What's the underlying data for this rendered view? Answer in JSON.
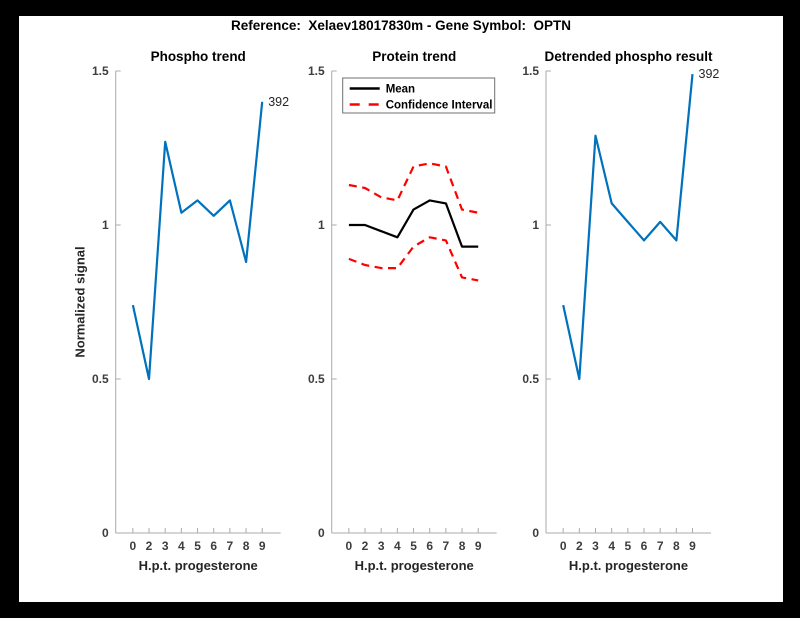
{
  "header": {
    "title": "Reference:  Xelaev18017830m - Gene Symbol:  OPTN"
  },
  "colors": {
    "line_blue": "#0072BD",
    "line_red": "#FF0000",
    "line_black": "#000000",
    "axis_spine": "#ABABAB",
    "tick_text": "#3D3D3D",
    "background": "#FFFFFF",
    "frame": "#000000"
  },
  "chart_data": [
    {
      "type": "line",
      "title": "Phospho trend",
      "xlabel": "H.p.t. progesterone",
      "ylabel": "Normalized signal",
      "x_tick_labels": [
        "0",
        "2",
        "3",
        "4",
        "5",
        "6",
        "7",
        "8",
        "9"
      ],
      "ytick_values": [
        0,
        0.5,
        1,
        1.5
      ],
      "ytick_labels": [
        "0",
        "0.5",
        "1",
        "1.5"
      ],
      "ylim": [
        0,
        1.5
      ],
      "grid": false,
      "series": [
        {
          "name": "phospho-signal",
          "color": "#0072BD",
          "style": "solid",
          "values": [
            0.74,
            0.5,
            1.27,
            1.04,
            1.08,
            1.03,
            1.08,
            0.88,
            1.4
          ]
        }
      ],
      "annotation": {
        "text": "392",
        "index": 8
      }
    },
    {
      "type": "line",
      "title": "Protein trend",
      "xlabel": "H.p.t. progesterone",
      "ylabel": "",
      "x_tick_labels": [
        "0",
        "2",
        "3",
        "4",
        "5",
        "6",
        "7",
        "8",
        "9"
      ],
      "ytick_values": [
        0,
        0.5,
        1,
        1.5
      ],
      "ytick_labels": [
        "0",
        "0.5",
        "1",
        "1.5"
      ],
      "ylim": [
        0,
        1.5
      ],
      "grid": false,
      "series": [
        {
          "name": "mean",
          "color": "#000000",
          "style": "solid",
          "values": [
            1.0,
            1.0,
            0.98,
            0.96,
            1.05,
            1.08,
            1.07,
            0.93,
            0.93
          ]
        },
        {
          "name": "ci-upper",
          "color": "#FF0000",
          "style": "dashed",
          "values": [
            1.13,
            1.12,
            1.09,
            1.08,
            1.19,
            1.2,
            1.19,
            1.05,
            1.04
          ]
        },
        {
          "name": "ci-lower",
          "color": "#FF0000",
          "style": "dashed",
          "values": [
            0.89,
            0.87,
            0.86,
            0.86,
            0.93,
            0.96,
            0.95,
            0.83,
            0.82
          ]
        }
      ],
      "legend": {
        "position": "top-left",
        "items": [
          {
            "label": "Mean",
            "color": "#000000",
            "style": "solid"
          },
          {
            "label": "Confidence Interval",
            "color": "#FF0000",
            "style": "dashed"
          }
        ]
      }
    },
    {
      "type": "line",
      "title": "Detrended phospho result",
      "xlabel": "H.p.t. progesterone",
      "ylabel": "",
      "x_tick_labels": [
        "0",
        "2",
        "3",
        "4",
        "5",
        "6",
        "7",
        "8",
        "9"
      ],
      "ytick_values": [
        0,
        0.5,
        1,
        1.5
      ],
      "ytick_labels": [
        "0",
        "0.5",
        "1",
        "1.5"
      ],
      "ylim": [
        0,
        1.5
      ],
      "grid": false,
      "series": [
        {
          "name": "detrended-phospho",
          "color": "#0072BD",
          "style": "solid",
          "values": [
            0.74,
            0.5,
            1.29,
            1.07,
            1.01,
            0.95,
            1.01,
            0.95,
            1.49
          ]
        }
      ],
      "annotation": {
        "text": "392",
        "index": 8
      }
    }
  ]
}
